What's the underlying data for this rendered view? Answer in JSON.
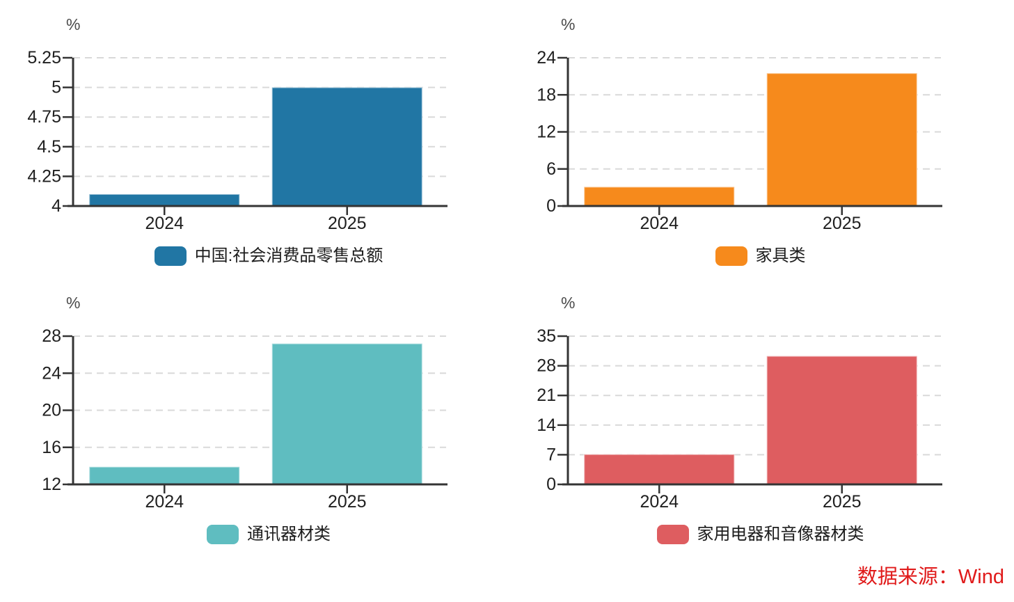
{
  "source_note": {
    "text": "数据来源：Wind",
    "color": "#e01a1a"
  },
  "chart_data": [
    {
      "type": "bar",
      "position": "top-left",
      "unit_label": "%",
      "categories": [
        "2024",
        "2025"
      ],
      "values": [
        4.1,
        5.0
      ],
      "ylim": [
        4,
        5.25
      ],
      "yticks": [
        4,
        4.25,
        4.5,
        4.75,
        5,
        5.25
      ],
      "ytick_labels": [
        "4",
        "4.25",
        "4.5",
        "4.75",
        "5",
        "5.25"
      ],
      "legend": "中国:社会消费品零售总额",
      "color": "#2176a4",
      "grid": "horizontal-dashed",
      "legend_position": "bottom"
    },
    {
      "type": "bar",
      "position": "top-right",
      "unit_label": "%",
      "categories": [
        "2024",
        "2025"
      ],
      "values": [
        3.1,
        21.5
      ],
      "ylim": [
        0,
        24
      ],
      "yticks": [
        0,
        6,
        12,
        18,
        24
      ],
      "ytick_labels": [
        "0",
        "6",
        "12",
        "18",
        "24"
      ],
      "legend": "家具类",
      "color": "#f68a1c",
      "grid": "horizontal-dashed",
      "legend_position": "bottom"
    },
    {
      "type": "bar",
      "position": "bottom-left",
      "unit_label": "%",
      "categories": [
        "2024",
        "2025"
      ],
      "values": [
        13.9,
        27.2
      ],
      "ylim": [
        12,
        28
      ],
      "yticks": [
        12,
        16,
        20,
        24,
        28
      ],
      "ytick_labels": [
        "12",
        "16",
        "20",
        "24",
        "28"
      ],
      "legend": "通讯器材类",
      "color": "#5fbdc0",
      "grid": "horizontal-dashed",
      "legend_position": "bottom"
    },
    {
      "type": "bar",
      "position": "bottom-right",
      "unit_label": "%",
      "categories": [
        "2024",
        "2025"
      ],
      "values": [
        7.1,
        30.3
      ],
      "ylim": [
        0,
        35
      ],
      "yticks": [
        0,
        7,
        14,
        21,
        28,
        35
      ],
      "ytick_labels": [
        "0",
        "7",
        "14",
        "21",
        "28",
        "35"
      ],
      "legend": "家用电器和音像器材类",
      "color": "#de5d60",
      "grid": "horizontal-dashed",
      "legend_position": "bottom"
    }
  ]
}
